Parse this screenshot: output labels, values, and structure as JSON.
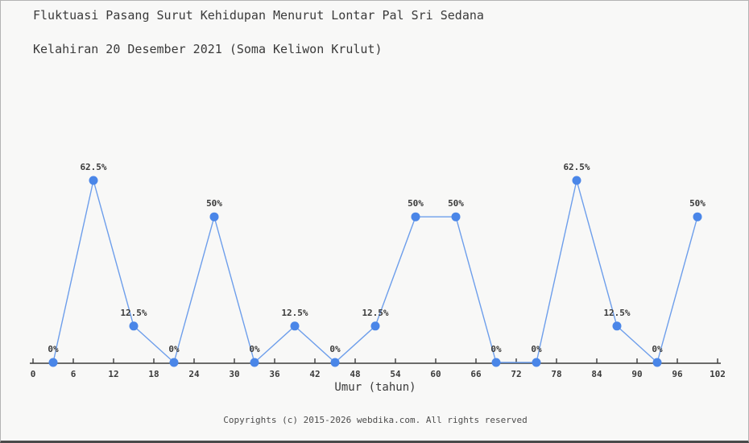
{
  "page": {
    "title_line1": "Fluktuasi Pasang Surut Kehidupan Menurut Lontar Pal Sri Sedana",
    "title_line2": "Kelahiran 20 Desember 2021 (Soma Keliwon Krulut)",
    "footer": "Copyrights (c) 2015-2026 webdika.com. All rights reserved"
  },
  "chart_data": {
    "type": "line",
    "title": "Fluktuasi Pasang Surut Kehidupan Menurut Lontar Pal Sri Sedana Kelahiran 20 Desember 2021 (Soma Keliwon Krulut)",
    "xlabel": "Umur (tahun)",
    "ylabel": "",
    "x": [
      3,
      9,
      15,
      21,
      27,
      33,
      39,
      45,
      51,
      57,
      63,
      69,
      75,
      81,
      87,
      93,
      99
    ],
    "values": [
      0,
      62.5,
      12.5,
      0,
      50,
      0,
      12.5,
      0,
      12.5,
      50,
      50,
      0,
      0,
      62.5,
      12.5,
      0,
      50
    ],
    "point_labels": [
      "0%",
      "62.5%",
      "12.5%",
      "0%",
      "50%",
      "0%",
      "12.5%",
      "0%",
      "12.5%",
      "50%",
      "50%",
      "0%",
      "0%",
      "62.5%",
      "12.5%",
      "0%",
      "50%"
    ],
    "x_ticks": [
      0,
      6,
      12,
      18,
      24,
      30,
      36,
      42,
      48,
      54,
      60,
      66,
      72,
      78,
      84,
      90,
      96,
      102
    ],
    "xlim": [
      0,
      102
    ],
    "ylim": [
      0,
      100
    ],
    "grid": false,
    "legend": "none",
    "colors": {
      "line": "#6d9eeb",
      "marker": "#4a86e8",
      "axis": "#3c3c3c",
      "label_text": "#3a3a3a"
    }
  }
}
